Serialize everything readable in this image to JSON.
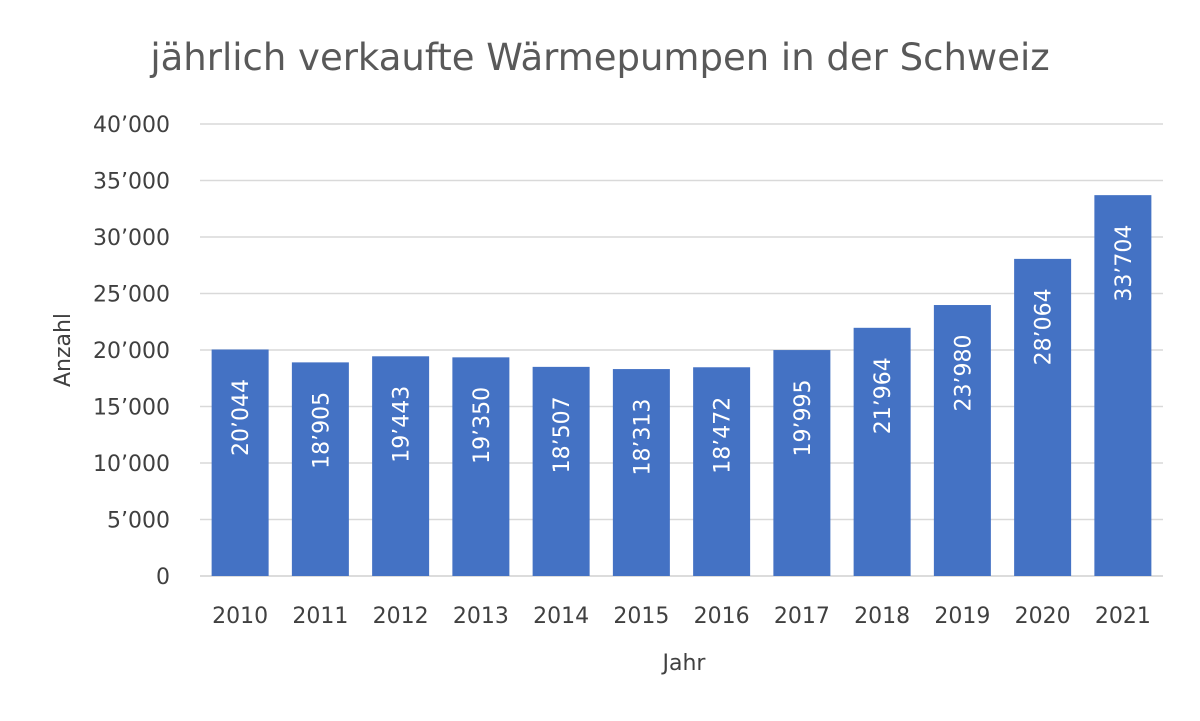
{
  "chart_data": {
    "type": "bar",
    "title": "jährlich verkaufte Wärmepumpen in der Schweiz",
    "xlabel": "Jahr",
    "ylabel": "Anzahl",
    "categories": [
      "2010",
      "2011",
      "2012",
      "2013",
      "2014",
      "2015",
      "2016",
      "2017",
      "2018",
      "2019",
      "2020",
      "2021"
    ],
    "values": [
      20044,
      18905,
      19443,
      19350,
      18507,
      18313,
      18472,
      19995,
      21964,
      23980,
      28064,
      33704
    ],
    "value_labels": [
      "20’044",
      "18’905",
      "19’443",
      "19’350",
      "18’507",
      "18’313",
      "18’472",
      "19’995",
      "21’964",
      "23’980",
      "28’064",
      "33’704"
    ],
    "ylim": [
      0,
      40000
    ],
    "yticks": [
      0,
      5000,
      10000,
      15000,
      20000,
      25000,
      30000,
      35000,
      40000
    ],
    "ytick_labels": [
      "0",
      "5’000",
      "10’000",
      "15’000",
      "20’000",
      "25’000",
      "30’000",
      "35’000",
      "40’000"
    ],
    "grid": true,
    "legend": "none",
    "bar_color": "#4472c4",
    "label_color": "#ffffff"
  }
}
